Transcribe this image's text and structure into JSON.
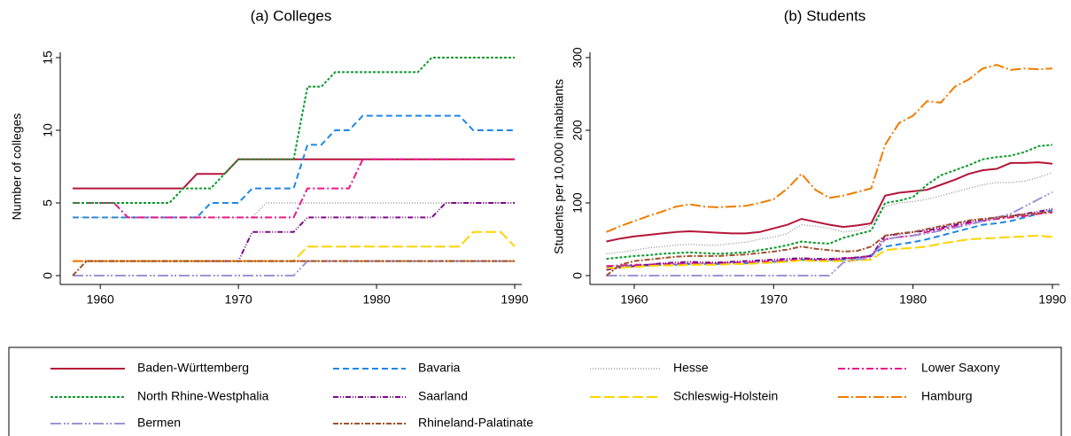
{
  "chart_data": [
    {
      "type": "line",
      "title": "(a) Colleges",
      "y_label": "Number of colleges",
      "x": [
        1958,
        1959,
        1960,
        1961,
        1962,
        1963,
        1964,
        1965,
        1966,
        1967,
        1968,
        1969,
        1970,
        1971,
        1972,
        1973,
        1974,
        1975,
        1976,
        1977,
        1978,
        1979,
        1980,
        1981,
        1982,
        1983,
        1984,
        1985,
        1986,
        1987,
        1988,
        1989,
        1990
      ],
      "xlim": [
        1958,
        1990
      ],
      "xticks": [
        1960,
        1970,
        1980,
        1990
      ],
      "ylim": [
        0,
        15
      ],
      "yticks": [
        0,
        5,
        10,
        15
      ],
      "series": [
        {
          "name": "Baden-Württemberg",
          "color": "#b5153a",
          "dash": "",
          "width": 2,
          "values": [
            6,
            6,
            6,
            6,
            6,
            6,
            6,
            6,
            6,
            7,
            7,
            7,
            8,
            8,
            8,
            8,
            8,
            8,
            8,
            8,
            8,
            8,
            8,
            8,
            8,
            8,
            8,
            8,
            8,
            8,
            8,
            8,
            8
          ]
        },
        {
          "name": "Bavaria",
          "color": "#1e88e5",
          "dash": "7,4",
          "width": 2,
          "values": [
            4,
            4,
            4,
            4,
            4,
            4,
            4,
            4,
            4,
            4,
            5,
            5,
            5,
            6,
            6,
            6,
            6,
            9,
            9,
            10,
            10,
            11,
            11,
            11,
            11,
            11,
            11,
            11,
            11,
            10,
            10,
            10,
            10
          ]
        },
        {
          "name": "Hesse",
          "color": "#888888",
          "dash": "1,2",
          "width": 1.2,
          "values": [
            4,
            4,
            4,
            4,
            4,
            4,
            4,
            4,
            4,
            4,
            4,
            4,
            4,
            4,
            5,
            5,
            5,
            5,
            5,
            5,
            5,
            5,
            5,
            5,
            5,
            5,
            5,
            5,
            5,
            5,
            5,
            5,
            5
          ]
        },
        {
          "name": "Lower Saxony",
          "color": "#e8178a",
          "dash": "8,3,2,3",
          "width": 2,
          "values": [
            5,
            5,
            5,
            5,
            4,
            4,
            4,
            4,
            4,
            4,
            4,
            4,
            4,
            4,
            4,
            4,
            4,
            6,
            6,
            6,
            6,
            8,
            8,
            8,
            8,
            8,
            8,
            8,
            8,
            8,
            8,
            8,
            8
          ]
        },
        {
          "name": "North Rhine-Westphalia",
          "color": "#0a9c2b",
          "dash": "3,2",
          "width": 2,
          "values": [
            5,
            5,
            5,
            5,
            5,
            5,
            5,
            5,
            6,
            6,
            6,
            7,
            8,
            8,
            8,
            8,
            8,
            13,
            13,
            14,
            14,
            14,
            14,
            14,
            14,
            14,
            15,
            15,
            15,
            15,
            15,
            15,
            15
          ]
        },
        {
          "name": "Saarland",
          "color": "#7b0a8a",
          "dash": "6,2,1,2,1,2",
          "width": 2,
          "values": [
            1,
            1,
            1,
            1,
            1,
            1,
            1,
            1,
            1,
            1,
            1,
            1,
            1,
            3,
            3,
            3,
            3,
            4,
            4,
            4,
            4,
            4,
            4,
            4,
            4,
            4,
            4,
            5,
            5,
            5,
            5,
            5,
            5
          ]
        },
        {
          "name": "Schleswig-Holstein",
          "color": "#ffd400",
          "dash": "12,4",
          "width": 2,
          "values": [
            1,
            1,
            1,
            1,
            1,
            1,
            1,
            1,
            1,
            1,
            1,
            1,
            1,
            1,
            1,
            1,
            1,
            2,
            2,
            2,
            2,
            2,
            2,
            2,
            2,
            2,
            2,
            2,
            2,
            3,
            3,
            3,
            2
          ]
        },
        {
          "name": "Hamburg",
          "color": "#f07d00",
          "dash": "12,3,2,3",
          "width": 2,
          "values": [
            1,
            1,
            1,
            1,
            1,
            1,
            1,
            1,
            1,
            1,
            1,
            1,
            1,
            1,
            1,
            1,
            1,
            1,
            1,
            1,
            1,
            1,
            1,
            1,
            1,
            1,
            1,
            1,
            1,
            1,
            1,
            1,
            1
          ]
        },
        {
          "name": "Bermen",
          "color": "#9e92d6",
          "dash": "12,3,2,2,2,3",
          "width": 2,
          "values": [
            0,
            0,
            0,
            0,
            0,
            0,
            0,
            0,
            0,
            0,
            0,
            0,
            0,
            0,
            0,
            0,
            0,
            1,
            1,
            1,
            1,
            1,
            1,
            1,
            1,
            1,
            1,
            1,
            1,
            1,
            1,
            1,
            1
          ]
        },
        {
          "name": "Rhineland-Palatinate",
          "color": "#a0522d",
          "dash": "6,2,2,2",
          "width": 2,
          "values": [
            0,
            1,
            1,
            1,
            1,
            1,
            1,
            1,
            1,
            1,
            1,
            1,
            1,
            1,
            1,
            1,
            1,
            1,
            1,
            1,
            1,
            1,
            1,
            1,
            1,
            1,
            1,
            1,
            1,
            1,
            1,
            1,
            1
          ]
        }
      ]
    },
    {
      "type": "line",
      "title": "(b) Students",
      "y_label": "Students per 10,000 inhabitants",
      "x": [
        1958,
        1959,
        1960,
        1961,
        1962,
        1963,
        1964,
        1965,
        1966,
        1967,
        1968,
        1969,
        1970,
        1971,
        1972,
        1973,
        1974,
        1975,
        1976,
        1977,
        1978,
        1979,
        1980,
        1981,
        1982,
        1983,
        1984,
        1985,
        1986,
        1987,
        1988,
        1989,
        1990
      ],
      "xlim": [
        1958,
        1990
      ],
      "xticks": [
        1960,
        1970,
        1980,
        1990
      ],
      "ylim": [
        0,
        300
      ],
      "yticks": [
        0,
        100,
        200,
        300
      ],
      "series": [
        {
          "name": "Baden-Württemberg",
          "color": "#b5153a",
          "dash": "",
          "width": 2,
          "values": [
            47,
            51,
            54,
            56,
            58,
            60,
            61,
            60,
            59,
            58,
            58,
            60,
            65,
            70,
            78,
            74,
            70,
            67,
            69,
            72,
            110,
            114,
            116,
            118,
            125,
            132,
            140,
            145,
            147,
            155,
            155,
            156,
            154
          ]
        },
        {
          "name": "Bavaria",
          "color": "#1e88e5",
          "dash": "7,4",
          "width": 2,
          "values": [
            12,
            13,
            14,
            14,
            15,
            15,
            16,
            16,
            16,
            17,
            17,
            18,
            19,
            20,
            22,
            21,
            21,
            22,
            24,
            28,
            40,
            43,
            46,
            50,
            55,
            60,
            65,
            70,
            72,
            75,
            80,
            85,
            90
          ]
        },
        {
          "name": "Hesse",
          "color": "#888888",
          "dash": "1,2",
          "width": 1.2,
          "values": [
            30,
            32,
            35,
            38,
            40,
            42,
            43,
            42,
            42,
            44,
            46,
            50,
            53,
            58,
            70,
            68,
            65,
            60,
            62,
            70,
            95,
            100,
            102,
            105,
            110,
            115,
            120,
            125,
            128,
            128,
            130,
            135,
            142
          ]
        },
        {
          "name": "Lower Saxony",
          "color": "#e8178a",
          "dash": "8,3,2,3",
          "width": 2,
          "values": [
            13,
            14,
            15,
            15,
            16,
            16,
            17,
            17,
            17,
            18,
            18,
            19,
            20,
            21,
            23,
            22,
            22,
            23,
            25,
            27,
            50,
            53,
            55,
            60,
            64,
            68,
            72,
            75,
            78,
            80,
            82,
            85,
            87
          ]
        },
        {
          "name": "North Rhine-Westphalia",
          "color": "#0a9c2b",
          "dash": "3,2",
          "width": 2,
          "values": [
            23,
            25,
            27,
            28,
            30,
            31,
            32,
            31,
            30,
            31,
            32,
            35,
            38,
            42,
            47,
            45,
            44,
            52,
            57,
            62,
            100,
            103,
            108,
            125,
            138,
            145,
            152,
            160,
            163,
            165,
            170,
            178,
            180
          ]
        },
        {
          "name": "Saarland",
          "color": "#7b0a8a",
          "dash": "6,2,1,2,1,2",
          "width": 2,
          "values": [
            8,
            11,
            13,
            15,
            17,
            18,
            19,
            18,
            18,
            19,
            20,
            21,
            22,
            23,
            24,
            23,
            23,
            24,
            25,
            27,
            55,
            57,
            60,
            62,
            66,
            70,
            74,
            77,
            80,
            82,
            85,
            88,
            92
          ]
        },
        {
          "name": "Schleswig-Holstein",
          "color": "#ffd400",
          "dash": "12,4",
          "width": 2,
          "values": [
            10,
            11,
            12,
            13,
            14,
            14,
            15,
            15,
            15,
            16,
            16,
            17,
            18,
            19,
            21,
            20,
            20,
            20,
            21,
            22,
            35,
            37,
            38,
            40,
            44,
            47,
            50,
            51,
            52,
            53,
            54,
            55,
            53
          ]
        },
        {
          "name": "Hamburg",
          "color": "#f07d00",
          "dash": "12,3,2,3",
          "width": 2,
          "values": [
            60,
            68,
            75,
            82,
            88,
            95,
            98,
            95,
            94,
            95,
            96,
            100,
            105,
            120,
            140,
            118,
            107,
            110,
            115,
            120,
            180,
            210,
            220,
            240,
            238,
            260,
            270,
            285,
            290,
            283,
            285,
            284,
            285
          ]
        },
        {
          "name": "Bermen",
          "color": "#9e92d6",
          "dash": "12,3,2,2,2,3",
          "width": 2,
          "values": [
            0,
            0,
            0,
            0,
            0,
            0,
            0,
            0,
            0,
            0,
            0,
            0,
            0,
            0,
            0,
            0,
            0,
            18,
            22,
            25,
            50,
            53,
            55,
            58,
            62,
            66,
            70,
            75,
            80,
            85,
            95,
            105,
            115
          ]
        },
        {
          "name": "Rhineland-Palatinate",
          "color": "#a0522d",
          "dash": "6,2,2,2",
          "width": 2,
          "values": [
            0,
            15,
            20,
            22,
            24,
            26,
            27,
            27,
            27,
            28,
            29,
            31,
            33,
            36,
            40,
            37,
            35,
            33,
            34,
            40,
            55,
            58,
            60,
            64,
            68,
            72,
            76,
            78,
            80,
            82,
            84,
            86,
            88
          ]
        }
      ]
    }
  ]
}
